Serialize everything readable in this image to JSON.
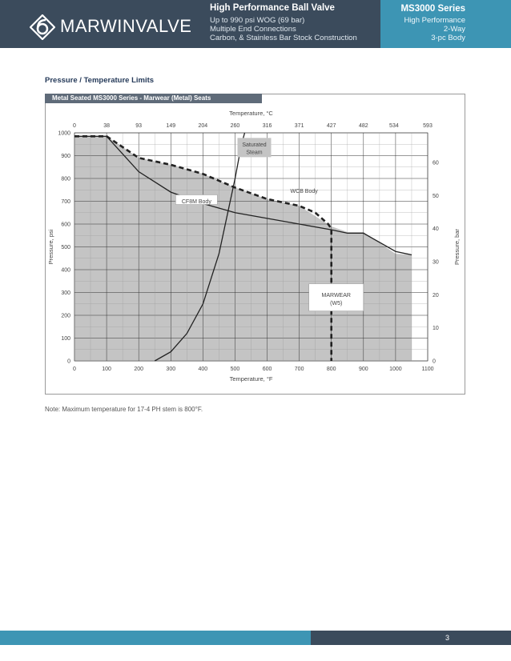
{
  "header": {
    "brand": "MARWINVALVE",
    "product_title": "High Performance Ball Valve",
    "product_lines": [
      "Up to 990 psi WOG (69 bar)",
      "Multiple End Connections",
      "Carbon, & Stainless Bar Stock Construction"
    ],
    "series_title": "MS3000 Series",
    "series_lines": [
      "High Performance",
      "2-Way",
      "3-pc Body"
    ]
  },
  "section_title": "Pressure / Temperature Limits",
  "chart_tab": "Metal Seated MS3000 Series - Marwear (Metal) Seats",
  "note": "Note: Maximum temperature for 17-4 PH stem is 800°F.",
  "footer": {
    "page_number": "3"
  },
  "colors": {
    "header_dark": "#3b4b5c",
    "header_accent": "#3d95b4",
    "area_fill": "#c4c4c4"
  },
  "chart_data": {
    "type": "area",
    "xlabel": "Temperature, °F",
    "x2label": "Temperature, °C",
    "ylabel": "Pressure, psi",
    "y2label": "Pressure, bar",
    "xlim": [
      0,
      1100
    ],
    "ylim": [
      0,
      1000
    ],
    "y2lim": [
      0,
      69
    ],
    "grid": true,
    "x_ticks": [
      "0",
      "100",
      "200",
      "300",
      "400",
      "500",
      "600",
      "700",
      "800",
      "900",
      "1000",
      "1100"
    ],
    "x_tick_values": [
      0,
      100,
      200,
      300,
      400,
      500,
      600,
      700,
      800,
      900,
      1000,
      1100
    ],
    "x2_ticks": [
      "0",
      "38",
      "93",
      "149",
      "204",
      "260",
      "316",
      "371",
      "427",
      "482",
      "534",
      "593"
    ],
    "x2_tick_values": [
      0,
      100,
      200,
      300,
      400,
      500,
      600,
      700,
      800,
      900,
      995,
      1100
    ],
    "y_ticks": [
      "0",
      "100",
      "200",
      "300",
      "400",
      "500",
      "600",
      "700",
      "800",
      "900",
      "1000"
    ],
    "y_tick_values": [
      0,
      100,
      200,
      300,
      400,
      500,
      600,
      700,
      800,
      900,
      1000
    ],
    "y2_ticks": [
      "0",
      "10",
      "20",
      "30",
      "40",
      "50",
      "60"
    ],
    "y2_tick_values": [
      0,
      145,
      290,
      435,
      580,
      725,
      870
    ],
    "series": [
      {
        "name": "MARWEAR (W5)",
        "style": "fill",
        "x": [
          0,
          100,
          200,
          300,
          400,
          500,
          600,
          700,
          800,
          850,
          900,
          1000,
          1050,
          1050,
          0
        ],
        "y": [
          985,
          985,
          890,
          860,
          820,
          760,
          710,
          680,
          590,
          565,
          565,
          470,
          465,
          0,
          0
        ]
      },
      {
        "name": "WCB Body",
        "style": "dashed",
        "x": [
          0,
          100,
          200,
          300,
          400,
          500,
          600,
          700,
          750,
          790,
          800,
          800
        ],
        "y": [
          985,
          985,
          890,
          860,
          820,
          760,
          710,
          680,
          650,
          600,
          580,
          0
        ]
      },
      {
        "name": "CF8M Body",
        "style": "solid",
        "x": [
          0,
          100,
          200,
          300,
          400,
          500,
          600,
          700,
          800,
          850,
          900,
          1000,
          1050
        ],
        "y": [
          985,
          985,
          830,
          740,
          690,
          650,
          625,
          600,
          575,
          560,
          560,
          480,
          465
        ]
      },
      {
        "name": "Saturated Steam",
        "style": "solid",
        "x": [
          250,
          300,
          350,
          400,
          450,
          500,
          520,
          530
        ],
        "y": [
          0,
          40,
          120,
          250,
          470,
          800,
          950,
          1000
        ]
      }
    ],
    "annotations": [
      {
        "text": "Saturated",
        "x": 560,
        "y": 950
      },
      {
        "text": "Steam",
        "x": 560,
        "y": 915
      },
      {
        "text": "WCB Body",
        "x": 715,
        "y": 745
      },
      {
        "text": "CF8M Body",
        "x": 380,
        "y": 700
      },
      {
        "text": "MARWEAR",
        "x": 815,
        "y": 290
      },
      {
        "text": "(W5)",
        "x": 815,
        "y": 255
      }
    ]
  }
}
